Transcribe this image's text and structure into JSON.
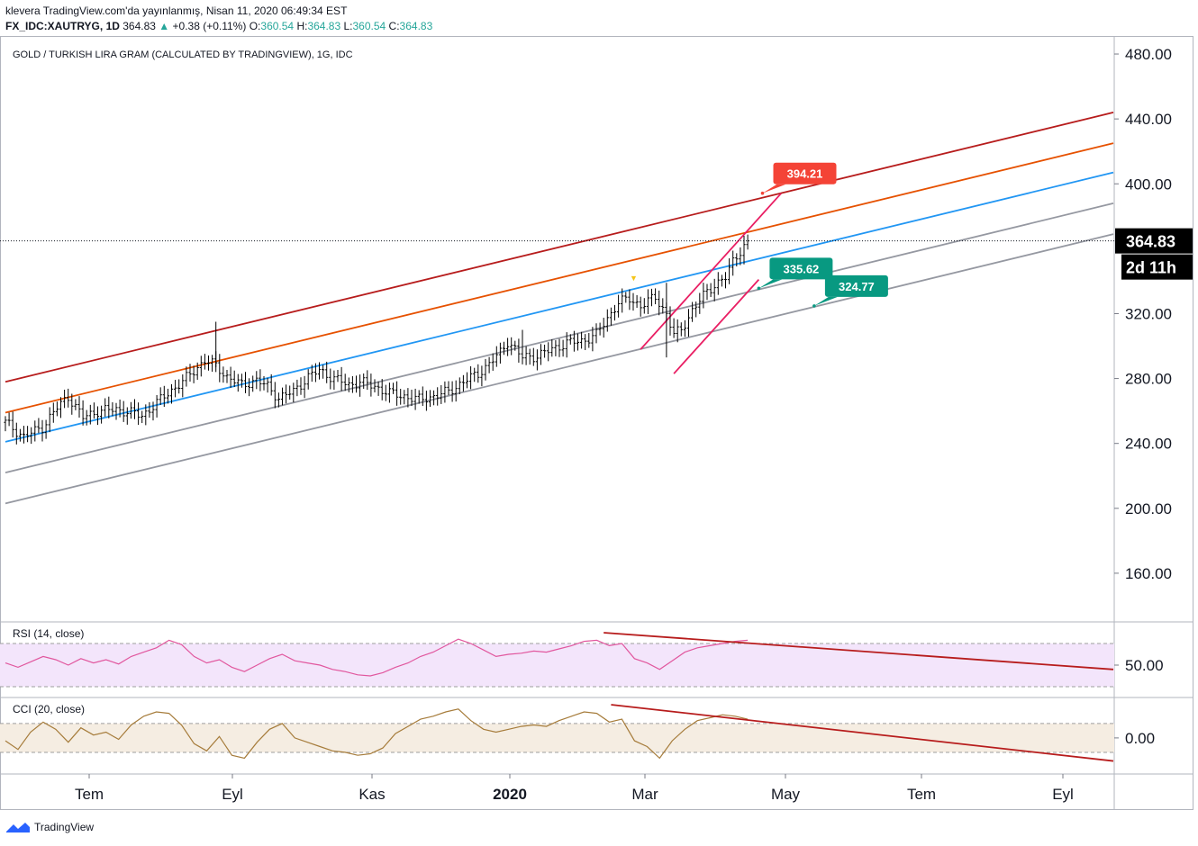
{
  "header": {
    "line1": "klevera TradingView.com'da yayınlanmış, Nisan 11, 2020 06:49:34 EST",
    "symbol": "FX_IDC:XAUTRYG, 1D",
    "price": "364.83",
    "change": "+0.38 (+0.11%)",
    "o_label": "O:",
    "o_value": "360.54",
    "h_label": "H:",
    "h_value": "364.83",
    "l_label": "L:",
    "l_value": "360.54",
    "c_label": "C:",
    "c_value": "364.83"
  },
  "footer": {
    "brand": "TradingView"
  },
  "colors": {
    "up": "#26a69a",
    "line_dark_red": "#b71c1c",
    "line_orange": "#e65100",
    "line_blue": "#2196f3",
    "line_gray": "#9598a1",
    "channel_pink": "#e91e63",
    "label_red": "#f44336",
    "label_teal": "#089981",
    "rsi_line": "#e1579e",
    "rsi_fill": "#f3e5fb",
    "cci_line": "#a67c3b",
    "cci_fill": "#f5ede2"
  },
  "chart_data": {
    "type": "candlestick",
    "title": "GOLD / TURKISH LIRA GRAM (CALCULATED BY TRADINGVIEW), 1G, IDC",
    "ylim": [
      130,
      490
    ],
    "y_ticks": [
      "480.00",
      "440.00",
      "400.00",
      "320.00",
      "280.00",
      "240.00",
      "200.00",
      "160.00"
    ],
    "x_ticks": [
      "Tem",
      "Eyl",
      "Kas",
      "2020",
      "Mar",
      "May",
      "Tem",
      "Eyl"
    ],
    "last_price": "364.83",
    "countdown": "2d 11h",
    "price_path": [
      [
        0,
        253
      ],
      [
        5,
        244
      ],
      [
        10,
        250
      ],
      [
        14,
        262
      ],
      [
        17,
        269
      ],
      [
        21,
        256
      ],
      [
        25,
        260
      ],
      [
        30,
        261
      ],
      [
        34,
        259
      ],
      [
        37,
        257
      ],
      [
        40,
        263
      ],
      [
        44,
        271
      ],
      [
        48,
        278
      ],
      [
        52,
        287
      ],
      [
        54,
        291
      ],
      [
        57,
        288
      ],
      [
        60,
        281
      ],
      [
        64,
        276
      ],
      [
        68,
        279
      ],
      [
        71,
        275
      ],
      [
        74,
        268
      ],
      [
        78,
        272
      ],
      [
        82,
        281
      ],
      [
        85,
        285
      ],
      [
        89,
        280
      ],
      [
        93,
        276
      ],
      [
        96,
        278
      ],
      [
        100,
        275
      ],
      [
        104,
        271
      ],
      [
        108,
        269
      ],
      [
        112,
        267
      ],
      [
        116,
        269
      ],
      [
        120,
        272
      ],
      [
        124,
        278
      ],
      [
        128,
        283
      ],
      [
        131,
        289
      ],
      [
        134,
        296
      ],
      [
        136,
        303
      ],
      [
        138,
        298
      ],
      [
        140,
        293
      ],
      [
        144,
        294
      ],
      [
        148,
        298
      ],
      [
        152,
        302
      ],
      [
        156,
        303
      ],
      [
        160,
        307
      ],
      [
        163,
        317
      ],
      [
        166,
        327
      ],
      [
        169,
        329
      ],
      [
        172,
        325
      ],
      [
        176,
        330
      ],
      [
        179,
        320
      ],
      [
        181,
        307
      ],
      [
        183,
        310
      ],
      [
        186,
        322
      ],
      [
        189,
        331
      ],
      [
        192,
        338
      ],
      [
        195,
        342
      ],
      [
        197,
        352
      ],
      [
        199,
        359
      ],
      [
        201,
        364.83
      ]
    ],
    "tall_wicks": [
      {
        "x": 57,
        "high": 315,
        "low": 284
      },
      {
        "x": 140,
        "high": 310,
        "low": 290
      },
      {
        "x": 179,
        "high": 339,
        "low": 293
      }
    ],
    "parallel_lines": [
      {
        "name": "upper-red",
        "x0": 0,
        "y0": 278,
        "x1": 300,
        "y1": 444
      },
      {
        "name": "orange",
        "x0": 0,
        "y0": 259,
        "x1": 300,
        "y1": 425
      },
      {
        "name": "blue",
        "x0": 0,
        "y0": 241,
        "x1": 300,
        "y1": 407
      },
      {
        "name": "gray-upper",
        "x0": 0,
        "y0": 222,
        "x1": 300,
        "y1": 388
      },
      {
        "name": "gray-lower",
        "x0": 0,
        "y0": 203,
        "x1": 300,
        "y1": 369
      }
    ],
    "channel_lines": [
      {
        "x0": 172,
        "y0": 298,
        "x1": 210,
        "y1": 394
      },
      {
        "x0": 181,
        "y0": 283,
        "x1": 204,
        "y1": 341
      }
    ],
    "price_labels": [
      {
        "text": "394.21",
        "kind": "red",
        "x": 205,
        "y": 394.21
      },
      {
        "text": "335.62",
        "kind": "teal",
        "x": 204,
        "y": 335.62
      },
      {
        "text": "324.77",
        "kind": "teal",
        "x": 219,
        "y": 324.77
      }
    ],
    "marker": {
      "x": 170,
      "y": 339,
      "symbol": "▼"
    },
    "rsi": {
      "label": "RSI (14, close)",
      "tick": "50.00",
      "ylim": [
        20,
        90
      ],
      "band": [
        30,
        70
      ],
      "values": [
        52,
        48,
        53,
        58,
        55,
        50,
        56,
        52,
        55,
        51,
        58,
        62,
        66,
        73,
        69,
        58,
        52,
        55,
        48,
        44,
        50,
        56,
        60,
        54,
        52,
        50,
        46,
        44,
        41,
        40,
        43,
        48,
        52,
        58,
        62,
        68,
        74,
        70,
        64,
        58,
        60,
        61,
        63,
        62,
        65,
        68,
        72,
        73,
        68,
        70,
        56,
        52,
        46,
        54,
        62,
        66,
        68,
        70,
        72,
        73
      ],
      "trendline": {
        "x0": 162,
        "y0": 80,
        "x1": 300,
        "y1": 46
      }
    },
    "cci": {
      "label": "CCI (20, close)",
      "tick": "0.00",
      "ylim": [
        -250,
        280
      ],
      "band": [
        -100,
        100
      ],
      "values": [
        -20,
        -80,
        40,
        110,
        60,
        -30,
        70,
        20,
        40,
        -10,
        90,
        150,
        180,
        170,
        90,
        -40,
        -90,
        10,
        -120,
        -140,
        -30,
        60,
        100,
        0,
        -30,
        -60,
        -90,
        -100,
        -120,
        -110,
        -70,
        30,
        80,
        130,
        150,
        180,
        200,
        120,
        60,
        40,
        60,
        80,
        90,
        80,
        120,
        150,
        180,
        170,
        110,
        130,
        -20,
        -60,
        -140,
        -20,
        60,
        120,
        140,
        160,
        150,
        130
      ],
      "trendline": {
        "x0": 164,
        "y0": 230,
        "x1": 300,
        "y1": -160
      }
    }
  }
}
